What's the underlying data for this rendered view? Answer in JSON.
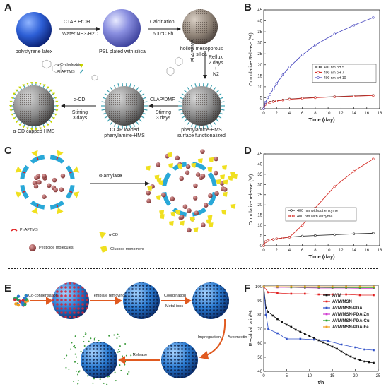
{
  "panels": {
    "A": "A",
    "B": "B",
    "C": "C",
    "D": "D",
    "E": "E",
    "F": "F"
  },
  "panelA": {
    "spheres": {
      "s1": "polystyrene latex",
      "s2": "PSL plated with silica",
      "s3_l1": "hollow mesoporous",
      "s3_l2": "silica",
      "s4_l1": "phenylamine-HMS",
      "s4_l2": "surface functionalized",
      "s5_l1": "CLAP loaded",
      "s5_l2": "phenylamine-HMS",
      "s6": "α-CD capped HMS"
    },
    "arrows": {
      "a1_top": "CTAB   EtOH",
      "a1_bot": "Water  NH3·H2O",
      "a2_top": "Calcination",
      "a2_bot": "600°C 8h",
      "a3_l1": "Reflux",
      "a3_l2": "2 days",
      "a3_l3": "+",
      "a3_l4": "N2",
      "a3_side": "PhAPTMS",
      "a4_top": "CLAP/DMF",
      "a4_bot1": "Stirring",
      "a4_bot2": "3 days",
      "a5_top": "α-CD",
      "a5_bot1": "Stirring",
      "a5_bot2": "3 days"
    },
    "legend": {
      "cd": "α-Cyclodextrin",
      "ph": "PhAPTMS"
    }
  },
  "panelC": {
    "arrow_label": "α-amylase",
    "legend_ph": "PhAPTMS",
    "legend_pest": "Pesticide molecules",
    "legend_cd": "α-CD",
    "legend_glu": "Glucose monomers"
  },
  "panelE": {
    "steps": {
      "s1": "Co-condensation",
      "s2": "Template removing",
      "s3_l1": "Coordination",
      "s3_l2": "Metal ions",
      "s4_l1": "Impregnation",
      "s4_l2": "Avermectin",
      "s5": "Release"
    }
  },
  "chart_data": [
    {
      "panel": "B",
      "type": "line",
      "xlabel": "Time (day)",
      "ylabel": "Cumulative Release (%)",
      "xlim": [
        0,
        18
      ],
      "ylim": [
        0,
        45
      ],
      "xticks": [
        0,
        2,
        4,
        6,
        8,
        10,
        12,
        14,
        16,
        18
      ],
      "yticks": [
        0,
        5,
        10,
        15,
        20,
        25,
        30,
        35,
        40,
        45
      ],
      "legend_position": "middle-right",
      "series": [
        {
          "name": "400 nm pH 5",
          "color": "#333333",
          "x": [
            0,
            0.3,
            0.6,
            1,
            1.5,
            2,
            3,
            4,
            6,
            8,
            11,
            14,
            17
          ],
          "y": [
            0,
            2.2,
            2.6,
            3,
            3.3,
            3.6,
            4,
            4.4,
            4.8,
            5.1,
            5.5,
            5.8,
            6.1
          ]
        },
        {
          "name": "400 nm pH 7",
          "color": "#d6312a",
          "x": [
            0,
            0.3,
            0.6,
            1,
            1.5,
            2,
            3,
            4,
            6,
            8,
            11,
            14,
            17
          ],
          "y": [
            0,
            2,
            2.5,
            2.9,
            3.2,
            3.5,
            3.9,
            4.3,
            4.7,
            5,
            5.4,
            5.7,
            6
          ]
        },
        {
          "name": "400 nm pH 10",
          "color": "#4a4ac0",
          "x": [
            0,
            0.3,
            0.6,
            1,
            1.5,
            2,
            3,
            4,
            6,
            8,
            11,
            14,
            17
          ],
          "y": [
            0,
            3,
            5,
            6.5,
            9,
            11.5,
            15.5,
            19,
            24.5,
            29,
            34,
            38,
            41.5
          ]
        }
      ]
    },
    {
      "panel": "D",
      "type": "line",
      "xlabel": "Time (day)",
      "ylabel": "Cumulative release (%)",
      "xlim": [
        0,
        18
      ],
      "ylim": [
        0,
        45
      ],
      "xticks": [
        0,
        2,
        4,
        6,
        8,
        10,
        12,
        14,
        16,
        18
      ],
      "yticks": [
        0,
        5,
        10,
        15,
        20,
        25,
        30,
        35,
        40,
        45
      ],
      "legend_position": "middle-left",
      "series": [
        {
          "name": "400 nm without enzyme",
          "color": "#333333",
          "x": [
            0,
            0.3,
            0.6,
            1,
            1.5,
            2,
            3,
            4,
            6,
            8,
            11,
            14,
            17
          ],
          "y": [
            0,
            2,
            2.5,
            2.8,
            3.1,
            3.4,
            3.8,
            4.2,
            4.7,
            5,
            5.4,
            5.8,
            6.1
          ]
        },
        {
          "name": "400 nm with enzyme",
          "color": "#d6312a",
          "x": [
            0,
            0.3,
            0.6,
            1,
            1.5,
            2,
            3,
            4,
            6,
            8,
            11,
            14,
            17
          ],
          "y": [
            0,
            2,
            2.5,
            2.8,
            3.1,
            3.4,
            3.8,
            4.2,
            10,
            18.5,
            29,
            36.5,
            42.5
          ]
        }
      ]
    },
    {
      "panel": "F",
      "type": "line",
      "xlabel": "t/h",
      "ylabel": "Residual ratio/%",
      "xlim": [
        0,
        25
      ],
      "ylim": [
        40,
        101
      ],
      "xticks": [
        0,
        5,
        10,
        15,
        20,
        25
      ],
      "yticks": [
        40,
        50,
        60,
        70,
        80,
        90,
        100
      ],
      "legend_position": "top-right",
      "series": [
        {
          "name": "AVM",
          "color": "#111111",
          "x": [
            0,
            0.5,
            1,
            2,
            3,
            4,
            5,
            6,
            7,
            8,
            9,
            10,
            11,
            12,
            13,
            14,
            15,
            16,
            17,
            18,
            19,
            20,
            21,
            22,
            23,
            24
          ],
          "y": [
            100,
            85,
            82,
            79.5,
            77,
            75,
            73,
            71.5,
            69.5,
            68,
            66.5,
            65,
            63.5,
            62,
            60.5,
            59,
            57.5,
            56,
            54,
            52,
            50.5,
            49,
            48,
            47,
            46.5,
            46
          ]
        },
        {
          "name": "AVM/MSN",
          "color": "#e02020",
          "x": [
            0,
            1,
            3,
            6,
            9,
            12,
            15,
            18,
            21,
            24
          ],
          "y": [
            100,
            96,
            95.5,
            95,
            95,
            94.5,
            94.5,
            94.5,
            94,
            94
          ]
        },
        {
          "name": "AVM/MSN-PDA",
          "color": "#3050c8",
          "x": [
            0,
            0.5,
            1,
            3,
            5,
            8,
            11,
            14,
            17,
            20,
            22,
            24
          ],
          "y": [
            100,
            80,
            70,
            67,
            63,
            63,
            62.5,
            61.5,
            59,
            57,
            55.5,
            55
          ]
        },
        {
          "name": "AVM/MSN-PDA-Zn",
          "color": "#d03ad0",
          "x": [
            0,
            3,
            6,
            9,
            12,
            15,
            18,
            21,
            24
          ],
          "y": [
            100,
            99.5,
            99.5,
            99.2,
            99,
            99,
            99,
            98.8,
            98.8
          ]
        },
        {
          "name": "AVM/MSN-PDA-Cu",
          "color": "#28a028",
          "x": [
            0,
            3,
            6,
            9,
            12,
            15,
            18,
            21,
            24
          ],
          "y": [
            100,
            99.8,
            99.6,
            99.5,
            99.5,
            99.4,
            99.4,
            99.3,
            99.3
          ]
        },
        {
          "name": "AVM/MSN-PDA-Fe",
          "color": "#f0a020",
          "x": [
            0,
            3,
            6,
            9,
            12,
            15,
            18,
            21,
            24
          ],
          "y": [
            100,
            100,
            100,
            100,
            100,
            100,
            100,
            100,
            100
          ]
        }
      ]
    }
  ]
}
